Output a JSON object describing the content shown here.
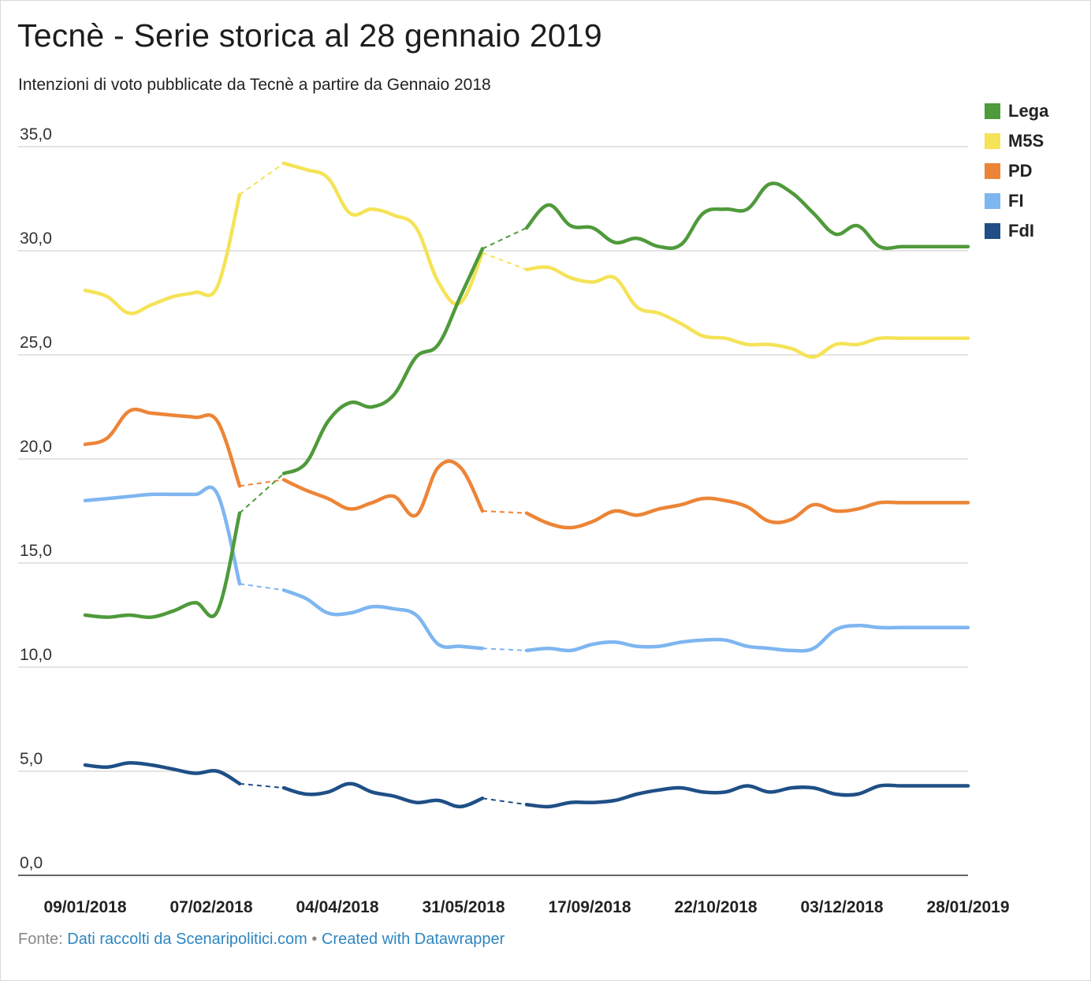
{
  "header": {
    "title": "Tecnè - Serie storica al 28 gennaio 2019",
    "subtitle": "Intenzioni di voto pubblicate da Tecnè a partire da Gennaio 2018"
  },
  "footer": {
    "source_label": "Fonte:",
    "source_link": "Dati raccolti da Scenaripolitici.com",
    "separator": "•",
    "credit_link": "Created with Datawrapper"
  },
  "chart_data": {
    "type": "line",
    "title": "Tecnè - Serie storica al 28 gennaio 2019",
    "subtitle": "Intenzioni di voto pubblicate da Tecnè a partire da Gennaio 2018",
    "xlabel": "",
    "ylabel": "",
    "ylim": [
      0,
      35
    ],
    "yticks": [
      "0,0",
      "5,0",
      "10,0",
      "15,0",
      "20,0",
      "25,0",
      "30,0",
      "35,0"
    ],
    "grid": true,
    "legend_position": "right",
    "x_tick_labels": [
      "09/01/2018",
      "07/02/2018",
      "04/04/2018",
      "31/05/2018",
      "17/09/2018",
      "22/10/2018",
      "03/12/2018",
      "28/01/2019"
    ],
    "x": [
      0,
      1,
      2,
      3,
      4,
      5,
      6,
      7,
      9,
      10,
      11,
      12,
      13,
      14,
      15,
      16,
      17,
      18,
      20,
      21,
      22,
      23,
      24,
      25,
      26,
      27,
      28,
      29,
      30,
      31,
      32,
      33,
      34,
      35,
      36,
      37,
      38,
      39,
      40
    ],
    "gaps": [
      [
        7,
        9
      ],
      [
        18,
        20
      ]
    ],
    "series": [
      {
        "name": "Lega",
        "color": "#4f9a3b",
        "values": [
          12.5,
          12.4,
          12.5,
          12.4,
          12.7,
          13.1,
          12.7,
          17.4,
          19.3,
          19.8,
          21.8,
          22.7,
          22.5,
          23.1,
          24.9,
          25.5,
          27.8,
          30.1,
          31.1,
          32.2,
          31.2,
          31.1,
          30.4,
          30.6,
          30.2,
          30.3,
          31.8,
          32.0,
          32.0,
          33.2,
          32.8,
          31.8,
          30.8,
          31.2,
          30.2,
          30.2,
          30.2,
          30.2,
          30.2
        ]
      },
      {
        "name": "M5S",
        "color": "#f5e358",
        "values": [
          28.1,
          27.8,
          27.0,
          27.4,
          27.8,
          28.0,
          28.3,
          32.7,
          34.2,
          33.9,
          33.5,
          31.8,
          32.0,
          31.7,
          31.1,
          28.5,
          27.5,
          29.9,
          29.1,
          29.2,
          28.7,
          28.5,
          28.7,
          27.3,
          27.0,
          26.5,
          25.9,
          25.8,
          25.5,
          25.5,
          25.3,
          24.9,
          25.5,
          25.5,
          25.8,
          25.8,
          25.8,
          25.8,
          25.8
        ]
      },
      {
        "name": "PD",
        "color": "#ec8537",
        "values": [
          20.7,
          21.0,
          22.3,
          22.2,
          22.1,
          22.0,
          21.8,
          18.7,
          19.0,
          18.5,
          18.1,
          17.6,
          17.9,
          18.2,
          17.3,
          19.6,
          19.6,
          17.5,
          17.4,
          16.9,
          16.7,
          17.0,
          17.5,
          17.3,
          17.6,
          17.8,
          18.1,
          18.0,
          17.7,
          17.0,
          17.1,
          17.8,
          17.5,
          17.6,
          17.9,
          17.9,
          17.9,
          17.9,
          17.9
        ]
      },
      {
        "name": "FI",
        "color": "#7eb6f0",
        "values": [
          18.0,
          18.1,
          18.2,
          18.3,
          18.3,
          18.3,
          18.3,
          14.0,
          13.7,
          13.3,
          12.6,
          12.6,
          12.9,
          12.8,
          12.5,
          11.1,
          11.0,
          10.9,
          10.8,
          10.9,
          10.8,
          11.1,
          11.2,
          11.0,
          11.0,
          11.2,
          11.3,
          11.3,
          11.0,
          10.9,
          10.8,
          10.9,
          11.8,
          12.0,
          11.9,
          11.9,
          11.9,
          11.9,
          11.9
        ]
      },
      {
        "name": "FdI",
        "color": "#1f4f86",
        "values": [
          5.3,
          5.2,
          5.4,
          5.3,
          5.1,
          4.9,
          5.0,
          4.4,
          4.2,
          3.9,
          4.0,
          4.4,
          4.0,
          3.8,
          3.5,
          3.6,
          3.3,
          3.7,
          3.4,
          3.3,
          3.5,
          3.5,
          3.6,
          3.9,
          4.1,
          4.2,
          4.0,
          4.0,
          4.3,
          4.0,
          4.2,
          4.2,
          3.9,
          3.9,
          4.3,
          4.3,
          4.3,
          4.3,
          4.3
        ]
      }
    ]
  }
}
